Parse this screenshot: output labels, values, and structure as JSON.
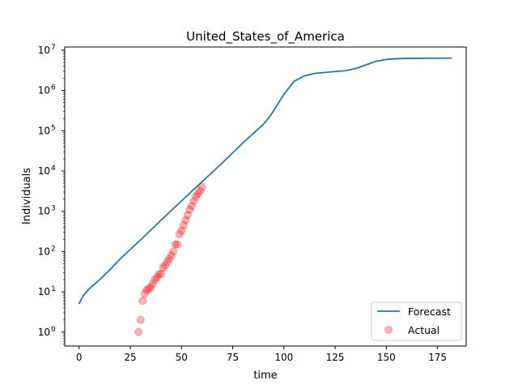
{
  "chart_data": {
    "type": "line",
    "title": "United_States_of_America",
    "xlabel": "time",
    "ylabel": "Individuals",
    "xlim": [
      -7,
      189
    ],
    "ylim": [
      0.45,
      12000000
    ],
    "yscale": "log",
    "grid": false,
    "legend_position": "bottom-right",
    "x_ticks": [
      0,
      25,
      50,
      75,
      100,
      125,
      150,
      175
    ],
    "x_tick_labels": [
      "0",
      "25",
      "50",
      "75",
      "100",
      "125",
      "150",
      "175"
    ],
    "y_ticks": [
      1,
      10,
      100,
      1000,
      10000,
      100000,
      1000000,
      10000000
    ],
    "y_tick_exponents": [
      "0",
      "1",
      "2",
      "3",
      "4",
      "5",
      "6",
      "7"
    ],
    "y_tick_base": "10",
    "series": [
      {
        "name": "Forecast",
        "kind": "line",
        "color": "#1f77b4",
        "x": [
          0,
          2,
          5,
          10,
          15,
          20,
          30,
          40,
          50,
          60,
          70,
          80,
          90,
          93,
          96,
          100,
          105,
          110,
          115,
          120,
          125,
          130,
          135,
          140,
          145,
          150,
          155,
          160,
          170,
          182
        ],
        "y": [
          5,
          8,
          12,
          20,
          35,
          65,
          195,
          600,
          1800,
          5400,
          16000,
          50000,
          145000,
          220000,
          380000,
          800000,
          1700000,
          2300000,
          2650000,
          2800000,
          2950000,
          3100000,
          3500000,
          4300000,
          5300000,
          5900000,
          6150000,
          6250000,
          6300000,
          6350000
        ]
      },
      {
        "name": "Actual",
        "kind": "scatter",
        "color": "#ff0000",
        "x": [
          29,
          30,
          31,
          32,
          33,
          34,
          35,
          36,
          37,
          38,
          39,
          40,
          41,
          42,
          43,
          44,
          45,
          46,
          47,
          48,
          49,
          50,
          51,
          52,
          53,
          54,
          55,
          56,
          57,
          58,
          59,
          60
        ],
        "y": [
          1,
          2,
          6,
          9,
          11,
          12,
          13,
          16,
          20,
          23,
          27,
          28,
          40,
          45,
          55,
          65,
          80,
          100,
          150,
          150,
          270,
          330,
          450,
          600,
          800,
          1100,
          1350,
          1800,
          2300,
          2700,
          3200,
          4000
        ]
      }
    ]
  }
}
